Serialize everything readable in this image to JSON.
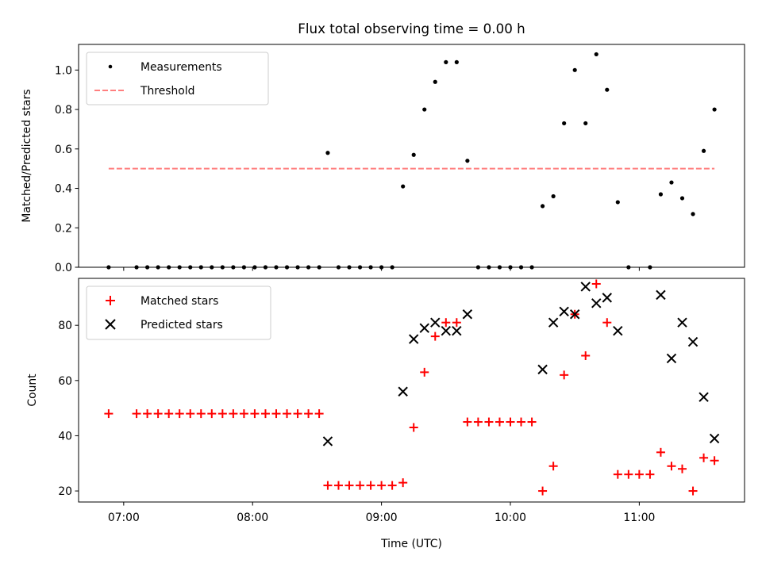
{
  "chart_data": [
    {
      "type": "scatter",
      "title": "Flux total observing time = 0.00 h",
      "xlabel": "",
      "ylabel": "Matched/Predicted stars",
      "ylim": [
        0,
        1.13
      ],
      "yticks": [
        "0.0",
        "0.2",
        "0.4",
        "0.6",
        "0.8",
        "1.0"
      ],
      "legend_position": "top-left",
      "grid": false,
      "series": [
        {
          "name": "Measurements",
          "marker": "dot",
          "color": "#000000",
          "points": [
            [
              "06:53",
              0.0
            ],
            [
              "07:06",
              0.0
            ],
            [
              "07:11",
              0.0
            ],
            [
              "07:16",
              0.0
            ],
            [
              "07:21",
              0.0
            ],
            [
              "07:26",
              0.0
            ],
            [
              "07:31",
              0.0
            ],
            [
              "07:36",
              0.0
            ],
            [
              "07:41",
              0.0
            ],
            [
              "07:46",
              0.0
            ],
            [
              "07:51",
              0.0
            ],
            [
              "07:56",
              0.0
            ],
            [
              "08:01",
              0.0
            ],
            [
              "08:06",
              0.0
            ],
            [
              "08:11",
              0.0
            ],
            [
              "08:16",
              0.0
            ],
            [
              "08:21",
              0.0
            ],
            [
              "08:26",
              0.0
            ],
            [
              "08:31",
              0.0
            ],
            [
              "08:35",
              0.58
            ],
            [
              "08:40",
              0.0
            ],
            [
              "08:45",
              0.0
            ],
            [
              "08:50",
              0.0
            ],
            [
              "08:55",
              0.0
            ],
            [
              "09:00",
              0.0
            ],
            [
              "09:05",
              0.0
            ],
            [
              "09:10",
              0.41
            ],
            [
              "09:15",
              0.57
            ],
            [
              "09:20",
              0.8
            ],
            [
              "09:25",
              0.94
            ],
            [
              "09:30",
              1.04
            ],
            [
              "09:35",
              1.04
            ],
            [
              "09:40",
              0.54
            ],
            [
              "09:45",
              0.0
            ],
            [
              "09:50",
              0.0
            ],
            [
              "09:55",
              0.0
            ],
            [
              "10:00",
              0.0
            ],
            [
              "10:05",
              0.0
            ],
            [
              "10:10",
              0.0
            ],
            [
              "10:15",
              0.31
            ],
            [
              "10:20",
              0.36
            ],
            [
              "10:25",
              0.73
            ],
            [
              "10:30",
              1.0
            ],
            [
              "10:35",
              0.73
            ],
            [
              "10:40",
              1.08
            ],
            [
              "10:45",
              0.9
            ],
            [
              "10:50",
              0.33
            ],
            [
              "10:55",
              0.0
            ],
            [
              "11:05",
              0.0
            ],
            [
              "11:10",
              0.37
            ],
            [
              "11:15",
              0.43
            ],
            [
              "11:20",
              0.35
            ],
            [
              "11:25",
              0.27
            ],
            [
              "11:30",
              0.59
            ],
            [
              "11:35",
              0.8
            ]
          ]
        },
        {
          "name": "Threshold",
          "marker": "dashed-line",
          "color": "#ff7f7f",
          "points": [
            [
              "06:53",
              0.5
            ],
            [
              "11:35",
              0.5
            ]
          ]
        }
      ]
    },
    {
      "type": "scatter",
      "title": "",
      "xlabel": "Time (UTC)",
      "ylabel": "Count",
      "ylim": [
        16,
        97
      ],
      "yticks": [
        "20",
        "40",
        "60",
        "80"
      ],
      "xlim": [
        "06:39",
        "11:49"
      ],
      "xticks": [
        "07:00",
        "08:00",
        "09:00",
        "10:00",
        "11:00"
      ],
      "legend_position": "top-left",
      "grid": false,
      "series": [
        {
          "name": "Matched stars",
          "marker": "plus",
          "color": "#ff0000",
          "points": [
            [
              "06:53",
              48
            ],
            [
              "07:06",
              48
            ],
            [
              "07:11",
              48
            ],
            [
              "07:16",
              48
            ],
            [
              "07:21",
              48
            ],
            [
              "07:26",
              48
            ],
            [
              "07:31",
              48
            ],
            [
              "07:36",
              48
            ],
            [
              "07:41",
              48
            ],
            [
              "07:46",
              48
            ],
            [
              "07:51",
              48
            ],
            [
              "07:56",
              48
            ],
            [
              "08:01",
              48
            ],
            [
              "08:06",
              48
            ],
            [
              "08:11",
              48
            ],
            [
              "08:16",
              48
            ],
            [
              "08:21",
              48
            ],
            [
              "08:26",
              48
            ],
            [
              "08:31",
              48
            ],
            [
              "08:35",
              22
            ],
            [
              "08:40",
              22
            ],
            [
              "08:45",
              22
            ],
            [
              "08:50",
              22
            ],
            [
              "08:55",
              22
            ],
            [
              "09:00",
              22
            ],
            [
              "09:05",
              22
            ],
            [
              "09:10",
              23
            ],
            [
              "09:15",
              43
            ],
            [
              "09:20",
              63
            ],
            [
              "09:25",
              76
            ],
            [
              "09:30",
              81
            ],
            [
              "09:35",
              81
            ],
            [
              "09:40",
              45
            ],
            [
              "09:45",
              45
            ],
            [
              "09:50",
              45
            ],
            [
              "09:55",
              45
            ],
            [
              "10:00",
              45
            ],
            [
              "10:05",
              45
            ],
            [
              "10:10",
              45
            ],
            [
              "10:15",
              20
            ],
            [
              "10:20",
              29
            ],
            [
              "10:25",
              62
            ],
            [
              "10:30",
              84
            ],
            [
              "10:35",
              69
            ],
            [
              "10:40",
              95
            ],
            [
              "10:45",
              81
            ],
            [
              "10:50",
              26
            ],
            [
              "10:55",
              26
            ],
            [
              "11:00",
              26
            ],
            [
              "11:05",
              26
            ],
            [
              "11:10",
              34
            ],
            [
              "11:15",
              29
            ],
            [
              "11:20",
              28
            ],
            [
              "11:25",
              20
            ],
            [
              "11:30",
              32
            ],
            [
              "11:35",
              31
            ]
          ]
        },
        {
          "name": "Predicted stars",
          "marker": "x",
          "color": "#000000",
          "points": [
            [
              "08:35",
              38
            ],
            [
              "09:10",
              56
            ],
            [
              "09:15",
              75
            ],
            [
              "09:20",
              79
            ],
            [
              "09:25",
              81
            ],
            [
              "09:30",
              78
            ],
            [
              "09:35",
              78
            ],
            [
              "09:40",
              84
            ],
            [
              "10:15",
              64
            ],
            [
              "10:20",
              81
            ],
            [
              "10:25",
              85
            ],
            [
              "10:30",
              84
            ],
            [
              "10:35",
              94
            ],
            [
              "10:40",
              88
            ],
            [
              "10:45",
              90
            ],
            [
              "10:50",
              78
            ],
            [
              "11:10",
              91
            ],
            [
              "11:15",
              68
            ],
            [
              "11:20",
              81
            ],
            [
              "11:25",
              74
            ],
            [
              "11:30",
              54
            ],
            [
              "11:35",
              39
            ]
          ]
        }
      ]
    }
  ]
}
